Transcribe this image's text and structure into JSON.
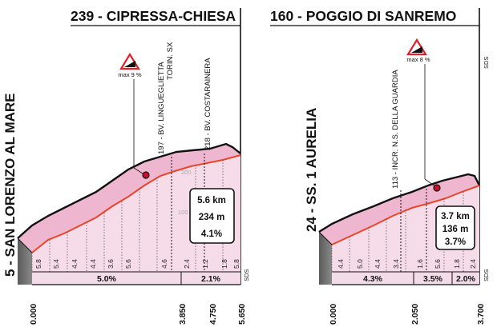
{
  "profiles": [
    {
      "title": "239 - CIPRESSA-CHIESA",
      "start_label": "5 - SAN LORENZO AL MARE",
      "poi": [
        {
          "text": "197 - BV. LINGUEGLIETTA",
          "subtext": "TORIN. SX"
        },
        {
          "text": "218 - BV. COSTARAINERA",
          "subtext": ""
        }
      ],
      "max_grade": "max 9 %",
      "grid_labels": [
        "200",
        "100"
      ],
      "segment_grades": [
        "5.8",
        "5.4",
        "4.4",
        "4.4",
        "3.6",
        "5.6",
        "4.6",
        "2.4",
        "1.2",
        "1.8",
        "5.8"
      ],
      "avg_grades": [
        "5.0%",
        "2.1%"
      ],
      "distances": [
        "0.000",
        "3.850",
        "4.750",
        "5.650"
      ],
      "summary": {
        "length": "5.6 km",
        "gain": "234 m",
        "avg": "4.1%"
      },
      "sds": "SDS"
    },
    {
      "title": "160 - POGGIO DI SANREMO",
      "start_label": "24 - SS. 1 AURELIA",
      "poi": [
        {
          "text": "113 - INCR. N.S. DELLA GUARDIA",
          "subtext": ""
        }
      ],
      "max_grade": "max 8 %",
      "segment_grades": [
        "4.4",
        "5.0",
        "4.4",
        "3.4",
        "1.6",
        "5.6",
        "1.8",
        "2.4"
      ],
      "avg_grades": [
        "4.3%",
        "3.5%",
        "2.0%"
      ],
      "distances": [
        "0.000",
        "2.050",
        "3.700"
      ],
      "summary": {
        "length": "3.7 km",
        "gain": "136 m",
        "avg": "3.7%"
      },
      "sds": "SDS"
    }
  ],
  "colors": {
    "road": "#e8452a",
    "fill_light": "#f6dce9",
    "fill_mid": "#eeb7cf",
    "base": "#707070",
    "warning": "#e0212a"
  }
}
